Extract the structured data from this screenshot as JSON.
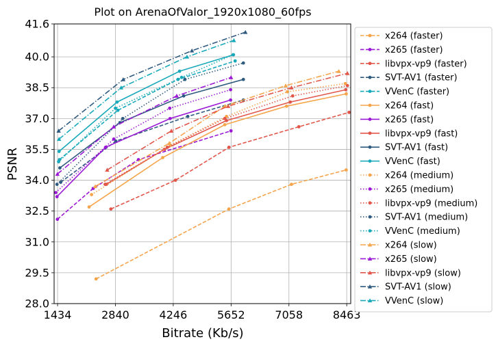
{
  "chart_data": {
    "type": "line",
    "title": "Plot on ArenaOfValor_1920x1080_60fps",
    "xlabel": "Bitrate (Kb/s)",
    "ylabel": "PSNR",
    "xlim": [
      1350,
      8560
    ],
    "ylim": [
      28.0,
      41.6
    ],
    "x_ticks": [
      1434,
      2840,
      4246,
      5652,
      7058,
      8463
    ],
    "y_ticks": [
      28.0,
      29.5,
      31.0,
      32.5,
      34.0,
      35.5,
      37.0,
      38.5,
      40.0,
      41.6
    ],
    "grid": true,
    "legend_position": "outside-right",
    "series": [
      {
        "name": "x264 (faster)",
        "color": "#f5a44a",
        "dash": "dashed",
        "marker": "circle",
        "points": [
          [
            2370,
            29.2
          ],
          [
            5600,
            32.6
          ],
          [
            7120,
            33.8
          ],
          [
            8450,
            34.5
          ]
        ]
      },
      {
        "name": "x265 (faster)",
        "color": "#9b19d6",
        "dash": "dashed",
        "marker": "circle",
        "points": [
          [
            1430,
            32.1
          ],
          [
            2300,
            33.6
          ],
          [
            3400,
            35.0
          ],
          [
            5650,
            36.4
          ]
        ]
      },
      {
        "name": "libvpx-vp9 (faster)",
        "color": "#e2564a",
        "dash": "dashed",
        "marker": "circle",
        "points": [
          [
            2730,
            32.6
          ],
          [
            4300,
            34.0
          ],
          [
            5600,
            35.6
          ],
          [
            7300,
            36.6
          ],
          [
            8520,
            37.3
          ]
        ]
      },
      {
        "name": "SVT-AV1 (faster)",
        "color": "#2f5a80",
        "dash": "dashed",
        "marker": "circle",
        "points": [
          [
            1510,
            33.9
          ],
          [
            2850,
            35.9
          ],
          [
            4600,
            37.1
          ],
          [
            5950,
            37.9
          ]
        ]
      },
      {
        "name": "VVenC (faster)",
        "color": "#17a9ba",
        "dash": "dashed",
        "marker": "circle",
        "points": [
          [
            1480,
            35.0
          ],
          [
            2900,
            37.4
          ],
          [
            4360,
            38.9
          ],
          [
            5750,
            39.8
          ]
        ]
      },
      {
        "name": "x264 (fast)",
        "color": "#f5a44a",
        "dash": "solid",
        "marker": "circle",
        "points": [
          [
            2200,
            32.7
          ],
          [
            3990,
            35.1
          ],
          [
            5500,
            36.7
          ],
          [
            7000,
            37.6
          ],
          [
            8450,
            38.2
          ]
        ]
      },
      {
        "name": "x265 (fast)",
        "color": "#9b19d6",
        "dash": "solid",
        "marker": "circle",
        "points": [
          [
            1420,
            33.2
          ],
          [
            2600,
            35.6
          ],
          [
            4170,
            37.0
          ],
          [
            5640,
            37.9
          ]
        ]
      },
      {
        "name": "libvpx-vp9 (fast)",
        "color": "#e2564a",
        "dash": "solid",
        "marker": "circle",
        "points": [
          [
            2620,
            33.8
          ],
          [
            4030,
            35.5
          ],
          [
            5540,
            36.9
          ],
          [
            7090,
            37.8
          ],
          [
            8440,
            38.4
          ]
        ]
      },
      {
        "name": "SVT-AV1 (fast)",
        "color": "#2f5a80",
        "dash": "solid",
        "marker": "circle",
        "points": [
          [
            1490,
            34.6
          ],
          [
            2950,
            36.8
          ],
          [
            4500,
            38.1
          ],
          [
            5950,
            38.9
          ]
        ]
      },
      {
        "name": "VVenC (fast)",
        "color": "#17a9ba",
        "dash": "solid",
        "marker": "circle",
        "points": [
          [
            1470,
            35.4
          ],
          [
            2880,
            37.8
          ],
          [
            4400,
            39.3
          ],
          [
            5710,
            40.1
          ]
        ]
      },
      {
        "name": "x264 (medium)",
        "color": "#f5a44a",
        "dash": "dotted",
        "marker": "circle",
        "points": [
          [
            2260,
            33.3
          ],
          [
            4180,
            35.7
          ],
          [
            5540,
            37.1
          ],
          [
            7020,
            38.3
          ],
          [
            8430,
            38.7
          ]
        ]
      },
      {
        "name": "x265 (medium)",
        "color": "#9b19d6",
        "dash": "dotted",
        "marker": "circle",
        "points": [
          [
            1390,
            33.4
          ],
          [
            2800,
            36.0
          ],
          [
            4160,
            37.5
          ],
          [
            5640,
            38.4
          ]
        ]
      },
      {
        "name": "libvpx-vp9 (medium)",
        "color": "#e2564a",
        "dash": "dotted",
        "marker": "circle",
        "points": [
          [
            2590,
            33.8
          ],
          [
            4100,
            35.6
          ],
          [
            5500,
            37.0
          ],
          [
            7150,
            38.1
          ],
          [
            8480,
            38.6
          ]
        ]
      },
      {
        "name": "SVT-AV1 (medium)",
        "color": "#2f5a80",
        "dash": "dotted",
        "marker": "circle",
        "points": [
          [
            1420,
            33.8
          ],
          [
            3020,
            37.0
          ],
          [
            4530,
            38.9
          ],
          [
            5950,
            39.7
          ]
        ]
      },
      {
        "name": "VVenC (medium)",
        "color": "#17a9ba",
        "dash": "dotted",
        "marker": "circle",
        "points": [
          [
            1460,
            34.9
          ],
          [
            2840,
            37.5
          ],
          [
            4450,
            39.0
          ],
          [
            5700,
            40.1
          ]
        ]
      },
      {
        "name": "x264 (slow)",
        "color": "#f5a44a",
        "dash": "dashdot",
        "marker": "triangle",
        "points": [
          [
            2350,
            33.7
          ],
          [
            4150,
            35.8
          ],
          [
            5500,
            37.6
          ],
          [
            6980,
            38.6
          ],
          [
            8270,
            39.3
          ]
        ]
      },
      {
        "name": "x265 (slow)",
        "color": "#9b19d6",
        "dash": "dashdot",
        "marker": "triangle",
        "points": [
          [
            1430,
            34.3
          ],
          [
            2800,
            36.6
          ],
          [
            4330,
            38.1
          ],
          [
            5650,
            39.0
          ]
        ]
      },
      {
        "name": "libvpx-vp9 (slow)",
        "color": "#e2564a",
        "dash": "dashdot",
        "marker": "triangle",
        "points": [
          [
            2640,
            34.5
          ],
          [
            4200,
            36.4
          ],
          [
            5580,
            37.6
          ],
          [
            7120,
            38.5
          ],
          [
            8480,
            39.2
          ]
        ]
      },
      {
        "name": "SVT-AV1 (slow)",
        "color": "#2f5a80",
        "dash": "dashdot",
        "marker": "triangle",
        "points": [
          [
            1460,
            36.4
          ],
          [
            3030,
            38.9
          ],
          [
            4700,
            40.3
          ],
          [
            6000,
            41.2
          ]
        ]
      },
      {
        "name": "VVenC (slow)",
        "color": "#17a9ba",
        "dash": "dashdot",
        "marker": "triangle",
        "points": [
          [
            1470,
            36.0
          ],
          [
            2980,
            38.5
          ],
          [
            4580,
            40.0
          ],
          [
            5720,
            40.8
          ]
        ]
      }
    ]
  }
}
